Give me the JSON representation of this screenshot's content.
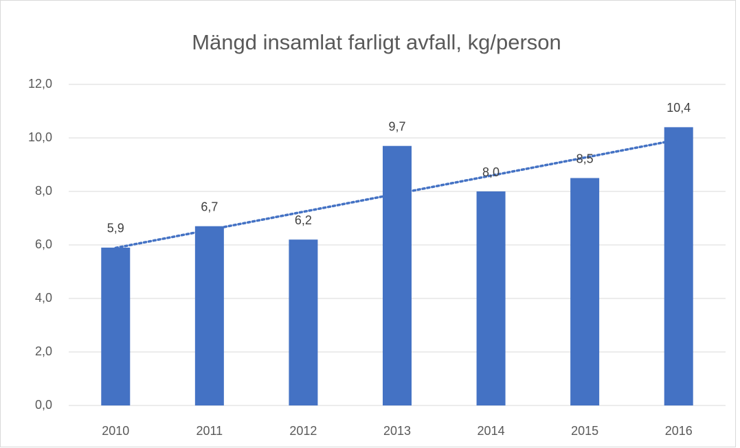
{
  "chart_data": {
    "type": "bar",
    "title": "Mängd insamlat farligt avfall, kg/person",
    "categories": [
      "2010",
      "2011",
      "2012",
      "2013",
      "2014",
      "2015",
      "2016"
    ],
    "values": [
      5.9,
      6.7,
      6.2,
      9.7,
      8.0,
      8.5,
      10.4
    ],
    "value_labels": [
      "5,9",
      "6,7",
      "6,2",
      "9,7",
      "8,0",
      "8,5",
      "10,4"
    ],
    "color": "#4472c4",
    "trendline": "linear",
    "ylim": [
      0,
      12
    ],
    "yticks": [
      {
        "value": 0,
        "label": "0,0"
      },
      {
        "value": 2,
        "label": "2,0"
      },
      {
        "value": 4,
        "label": "4,0"
      },
      {
        "value": 6,
        "label": "6,0"
      },
      {
        "value": 8,
        "label": "8,0"
      },
      {
        "value": 10,
        "label": "10,0"
      },
      {
        "value": 12,
        "label": "12,0"
      }
    ],
    "grid": true
  }
}
